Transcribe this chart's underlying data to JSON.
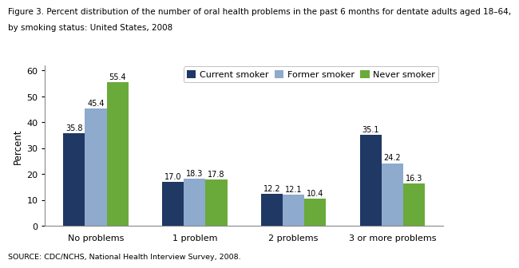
{
  "title_line1": "Figure 3. Percent distribution of the number of oral health problems in the past 6 months for dentate adults aged 18–64,",
  "title_line2": "by smoking status: United States, 2008",
  "categories": [
    "No problems",
    "1 problem",
    "2 problems",
    "3 or more problems"
  ],
  "series": [
    {
      "label": "Current smoker",
      "color": "#1f3864",
      "values": [
        35.8,
        17.0,
        12.2,
        35.1
      ]
    },
    {
      "label": "Former smoker",
      "color": "#8eaacc",
      "values": [
        45.4,
        18.3,
        12.1,
        24.2
      ]
    },
    {
      "label": "Never smoker",
      "color": "#6aaa3a",
      "values": [
        55.4,
        17.8,
        10.4,
        16.3
      ]
    }
  ],
  "ylabel": "Percent",
  "ylim": [
    0,
    62
  ],
  "yticks": [
    0,
    10,
    20,
    30,
    40,
    50,
    60
  ],
  "source": "SOURCE: CDC/NCHS, National Health Interview Survey, 2008.",
  "bar_width": 0.22,
  "value_fontsize": 7.0,
  "axis_label_fontsize": 8.5,
  "tick_fontsize": 8.0,
  "legend_fontsize": 8.0,
  "title_fontsize": 7.5,
  "source_fontsize": 6.8
}
